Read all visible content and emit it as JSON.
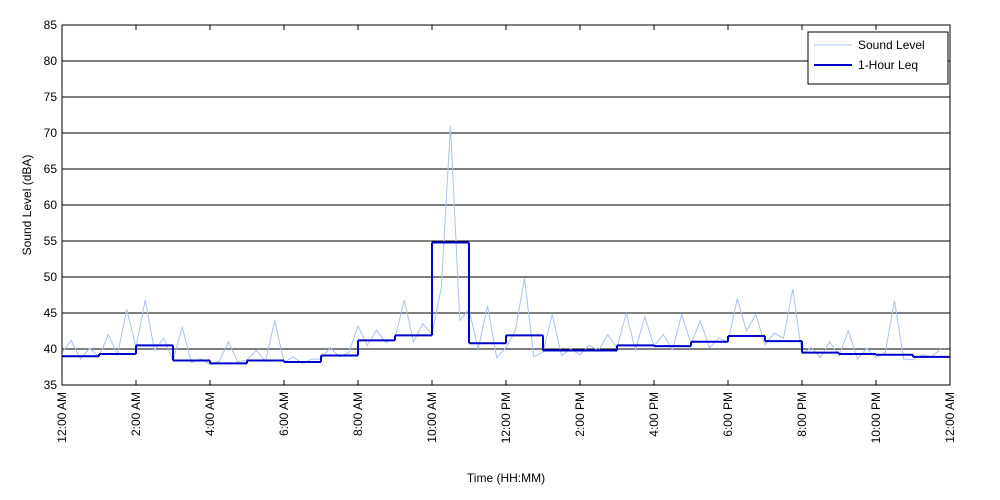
{
  "chart_data": {
    "type": "line",
    "xlabel": "Time (HH:MM)",
    "ylabel": "Sound Level (dBA)",
    "xlim": [
      0,
      24
    ],
    "ylim": [
      35,
      85
    ],
    "yticks": [
      35,
      40,
      45,
      50,
      55,
      60,
      65,
      70,
      75,
      80,
      85
    ],
    "xticks": [
      {
        "value": 0,
        "label": "12:00 AM"
      },
      {
        "value": 2,
        "label": "2:00 AM"
      },
      {
        "value": 4,
        "label": "4:00 AM"
      },
      {
        "value": 6,
        "label": "6:00 AM"
      },
      {
        "value": 8,
        "label": "8:00 AM"
      },
      {
        "value": 10,
        "label": "10:00 AM"
      },
      {
        "value": 12,
        "label": "12:00 PM"
      },
      {
        "value": 14,
        "label": "2:00 PM"
      },
      {
        "value": 16,
        "label": "4:00 PM"
      },
      {
        "value": 18,
        "label": "6:00 PM"
      },
      {
        "value": 20,
        "label": "8:00 PM"
      },
      {
        "value": 22,
        "label": "10:00 PM"
      },
      {
        "value": 24,
        "label": "12:00 AM"
      }
    ],
    "grid": "y",
    "legend": "upper right",
    "series": [
      {
        "name": "Sound Level",
        "color": "#a9c3f0",
        "style": "line",
        "x": [
          0,
          0.25,
          0.5,
          0.75,
          1,
          1.25,
          1.5,
          1.75,
          2,
          2.25,
          2.5,
          2.75,
          3,
          3.25,
          3.5,
          3.75,
          4,
          4.25,
          4.5,
          4.75,
          5,
          5.25,
          5.5,
          5.75,
          6,
          6.25,
          6.5,
          6.75,
          7,
          7.25,
          7.5,
          7.75,
          8,
          8.25,
          8.5,
          8.75,
          9,
          9.25,
          9.5,
          9.75,
          10,
          10.25,
          10.5,
          10.75,
          11,
          11.25,
          11.5,
          11.75,
          12,
          12.25,
          12.5,
          12.75,
          13,
          13.25,
          13.5,
          13.75,
          14,
          14.25,
          14.5,
          14.75,
          15,
          15.25,
          15.5,
          15.75,
          16,
          16.25,
          16.5,
          16.75,
          17,
          17.25,
          17.5,
          17.75,
          18,
          18.25,
          18.5,
          18.75,
          19,
          19.25,
          19.5,
          19.75,
          20,
          20.25,
          20.5,
          20.75,
          21,
          21.25,
          21.5,
          21.75,
          22,
          22.25,
          22.5,
          22.75,
          23,
          23.25,
          23.5,
          23.75
        ],
        "values": [
          39.5,
          41.2,
          38.6,
          40.1,
          38.9,
          42.0,
          39.2,
          45.5,
          40.3,
          46.8,
          39.8,
          41.5,
          38.4,
          43.0,
          38.1,
          38.6,
          37.9,
          38.3,
          41.0,
          38.2,
          38.5,
          39.8,
          38.3,
          43.9,
          38.2,
          38.9,
          38.0,
          38.6,
          38.6,
          40.2,
          38.9,
          39.5,
          43.2,
          40.5,
          42.6,
          40.9,
          41.5,
          46.8,
          41.0,
          43.5,
          42.0,
          48.5,
          71.0,
          44.0,
          45.5,
          40.0,
          46.0,
          38.8,
          40.2,
          42.5,
          49.8,
          38.9,
          39.6,
          44.8,
          39.1,
          40.0,
          39.2,
          40.5,
          39.8,
          42.0,
          40.1,
          45.0,
          39.8,
          44.5,
          40.4,
          42.0,
          39.9,
          44.8,
          40.7,
          43.9,
          40.2,
          41.5,
          41.0,
          47.0,
          42.5,
          44.8,
          40.6,
          42.2,
          41.5,
          48.3,
          39.3,
          40.2,
          38.8,
          41.0,
          39.0,
          42.5,
          38.6,
          40.1,
          38.8,
          39.5,
          46.7,
          38.6,
          38.5,
          39.2,
          38.9,
          40.0
        ]
      },
      {
        "name": "1-Hour Leq",
        "color": "#0000cc",
        "style": "step-post",
        "x": [
          0,
          1,
          2,
          3,
          4,
          5,
          6,
          7,
          8,
          9,
          10,
          11,
          12,
          13,
          14,
          15,
          16,
          17,
          18,
          19,
          20,
          21,
          22,
          23
        ],
        "values": [
          39.0,
          39.3,
          40.5,
          38.4,
          38.0,
          38.4,
          38.2,
          39.1,
          41.2,
          41.9,
          54.8,
          40.8,
          41.9,
          39.8,
          39.8,
          40.5,
          40.4,
          41.0,
          41.8,
          41.1,
          39.5,
          39.3,
          39.2,
          38.9
        ]
      }
    ]
  }
}
